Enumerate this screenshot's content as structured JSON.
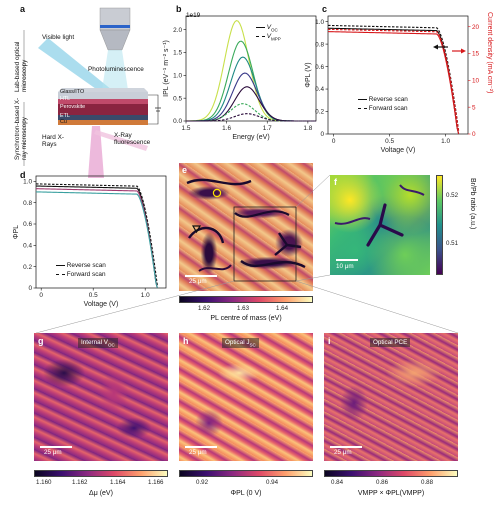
{
  "colors": {
    "magma_low": "#1a0a2e",
    "magma_high": "#fbf0b0",
    "viridis_low": "#440154",
    "viridis_high": "#fde725",
    "current_red": "#d7191c"
  },
  "panels": {
    "a": {
      "letter": "a",
      "side_top": "Lab-based optical microscopy",
      "side_bottom": "Synchrotron-based X-ray microscopy",
      "visible_light": "Visible light",
      "photoluminescence": "Photoluminescence",
      "layers": [
        "Glass/ITO",
        "HTL",
        "Perovskite",
        "ETL",
        "Cu"
      ],
      "hard_xrays": "Hard X-Rays",
      "xray_fluorescence": "X-Ray fluorescence"
    },
    "b": {
      "letter": "b",
      "scale_note": "1e19",
      "legend_voc": "V",
      "legend_voc_sub": "OC",
      "legend_vmpp": "V",
      "legend_vmpp_sub": "MPP"
    },
    "c": {
      "letter": "c",
      "legend_reverse": "Reverse scan",
      "legend_forward": "Forward scan",
      "y_right_label": "Current density (mA cm⁻²)"
    },
    "d": {
      "letter": "d",
      "legend_reverse": "Reverse scan",
      "legend_forward": "Forward scan"
    },
    "e": {
      "letter": "e",
      "scalebar": "25 μm",
      "colorbar_label": "PL centre of mass (eV)",
      "colorbar_ticks": [
        "1.62",
        "1.63",
        "1.64"
      ]
    },
    "f": {
      "letter": "f",
      "scalebar": "10 μm",
      "colorbar_label": "Br/Pb ratio (a.u.)",
      "colorbar_ticks": [
        "0.52",
        "0.51"
      ]
    },
    "g": {
      "letter": "g",
      "title": "Internal V",
      "title_sub": "OC",
      "scalebar": "25 μm",
      "colorbar_label": "Δμ (eV)",
      "colorbar_ticks": [
        "1.160",
        "1.162",
        "1.164",
        "1.166"
      ]
    },
    "h": {
      "letter": "h",
      "title": "Optical J",
      "title_sub": "SC",
      "scalebar": "25 μm",
      "colorbar_label": "ΦPL (0 V)",
      "colorbar_ticks": [
        "0.92",
        "0.94"
      ]
    },
    "i": {
      "letter": "i",
      "title": "Optical PCE",
      "scalebar": "25 μm",
      "colorbar_label": "VMPP × ΦPL(VMPP)",
      "colorbar_ticks": [
        "0.84",
        "0.86",
        "0.88"
      ]
    }
  },
  "chart_data": [
    {
      "id": "b",
      "type": "line",
      "xlabel": "Energy (eV)",
      "ylabel": "IPL (eV⁻¹ m⁻² s⁻¹)",
      "xlim": [
        1.5,
        1.82
      ],
      "ylim": [
        0,
        2.3
      ],
      "xticks": [
        "1.5",
        "1.6",
        "1.7",
        "1.8"
      ],
      "yticks": [
        "0.0",
        "0.5",
        "1.0",
        "1.5",
        "2.0"
      ],
      "series": [
        {
          "color": "#c8e04a",
          "dash": false,
          "center": 1.625,
          "peak": 2.2,
          "width": 0.03
        },
        {
          "color": "#3aaa5a",
          "dash": false,
          "center": 1.635,
          "peak": 1.75,
          "width": 0.03
        },
        {
          "color": "#1f8a85",
          "dash": false,
          "center": 1.64,
          "peak": 1.4,
          "width": 0.03
        },
        {
          "color": "#3a3a8a",
          "dash": false,
          "center": 1.645,
          "peak": 1.05,
          "width": 0.03
        },
        {
          "color": "#2a0a3a",
          "dash": false,
          "center": 1.65,
          "peak": 0.75,
          "width": 0.03
        },
        {
          "color": "#3aaa5a",
          "dash": true,
          "center": 1.64,
          "peak": 0.38,
          "width": 0.03
        },
        {
          "color": "#2a0a3a",
          "dash": true,
          "center": 1.65,
          "peak": 0.16,
          "width": 0.03
        }
      ]
    },
    {
      "id": "c",
      "type": "line",
      "xlabel": "Voltage (V)",
      "ylabel": "ΦPL (V)",
      "xlim": [
        -0.05,
        1.2
      ],
      "ylim": [
        0,
        1.05
      ],
      "xticks": [
        "0",
        "0.5",
        "1.0"
      ],
      "yticks": [
        "0",
        "0.2",
        "0.4",
        "0.6",
        "0.8",
        "1.0"
      ],
      "yticks_right": [
        "0",
        "5",
        "10",
        "15",
        "20"
      ],
      "series": [
        {
          "name": "Reverse scan",
          "color": "#111111",
          "dash": false,
          "plateau": 0.94,
          "knee": 0.92,
          "voc": 1.11
        },
        {
          "name": "Forward scan",
          "color": "#111111",
          "dash": true,
          "plateau": 0.965,
          "knee": 0.92,
          "voc": 1.12
        },
        {
          "color": "#d7191c",
          "dash": false,
          "plateau": 0.91,
          "knee": 0.92,
          "voc": 1.11
        },
        {
          "color": "#d7191c",
          "dash": true,
          "plateau": 0.93,
          "knee": 0.92,
          "voc": 1.12
        }
      ]
    },
    {
      "id": "d",
      "type": "line",
      "xlabel": "Voltage (V)",
      "ylabel": "ΦPL",
      "xlim": [
        -0.05,
        1.2
      ],
      "ylim": [
        0,
        1.05
      ],
      "xticks": [
        "0",
        "0.5",
        "1.0"
      ],
      "yticks": [
        "0",
        "0.2",
        "0.4",
        "0.6",
        "0.8",
        "1.0"
      ],
      "series": [
        {
          "name": "Reverse scan",
          "color": "#111111",
          "dash": false,
          "plateau": 0.955,
          "knee": 0.92,
          "voc": 1.11
        },
        {
          "name": "Forward scan",
          "color": "#111111",
          "dash": true,
          "plateau": 0.975,
          "knee": 0.92,
          "voc": 1.12
        },
        {
          "color": "#a03a70",
          "dash": false,
          "plateau": 0.93,
          "knee": 0.92,
          "voc": 1.11
        },
        {
          "color": "#3aa0a0",
          "dash": false,
          "plateau": 0.9,
          "knee": 0.92,
          "voc": 1.11
        }
      ]
    }
  ]
}
